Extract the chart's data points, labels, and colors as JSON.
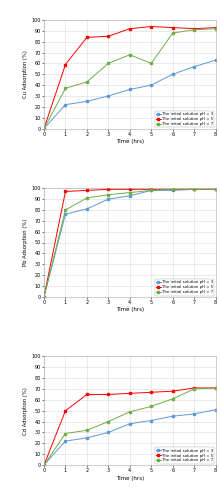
{
  "time": [
    0,
    1,
    2,
    3,
    4,
    5,
    6,
    7,
    8
  ],
  "cu": {
    "ph3": [
      0,
      22,
      25,
      30,
      36,
      40,
      50,
      57,
      63
    ],
    "ph5": [
      0,
      59,
      84,
      85,
      92,
      94,
      93,
      92,
      93
    ],
    "ph7": [
      0,
      37,
      43,
      60,
      68,
      60,
      88,
      91,
      92
    ]
  },
  "pb": {
    "ph3": [
      0,
      76,
      81,
      90,
      93,
      98,
      98,
      99,
      99
    ],
    "ph5": [
      0,
      97,
      98,
      99,
      99,
      99,
      99,
      99,
      99
    ],
    "ph7": [
      0,
      80,
      91,
      94,
      96,
      98,
      99,
      99,
      99
    ]
  },
  "cd": {
    "ph3": [
      0,
      22,
      25,
      30,
      38,
      41,
      45,
      47,
      51
    ],
    "ph5": [
      0,
      50,
      65,
      65,
      66,
      67,
      68,
      71,
      71
    ],
    "ph7": [
      0,
      29,
      32,
      40,
      49,
      54,
      61,
      70,
      71
    ]
  },
  "colors": {
    "ph3": "#5B9BD5",
    "ph5": "#FF0000",
    "ph7": "#70AD47"
  },
  "legend_labels": {
    "ph3": "The initial solution pH = 3",
    "ph5": "The initial solution pH = 5",
    "ph7": "The initial solution pH = 7"
  },
  "ylabels": [
    "Cu Adsorption (%)",
    "Pb Adsorption (%)",
    "Cd Adsorption (%)"
  ],
  "xlabel": "Time (hrs)",
  "background_color": "#FFFFFF",
  "grid_color": "#D9D9D9"
}
